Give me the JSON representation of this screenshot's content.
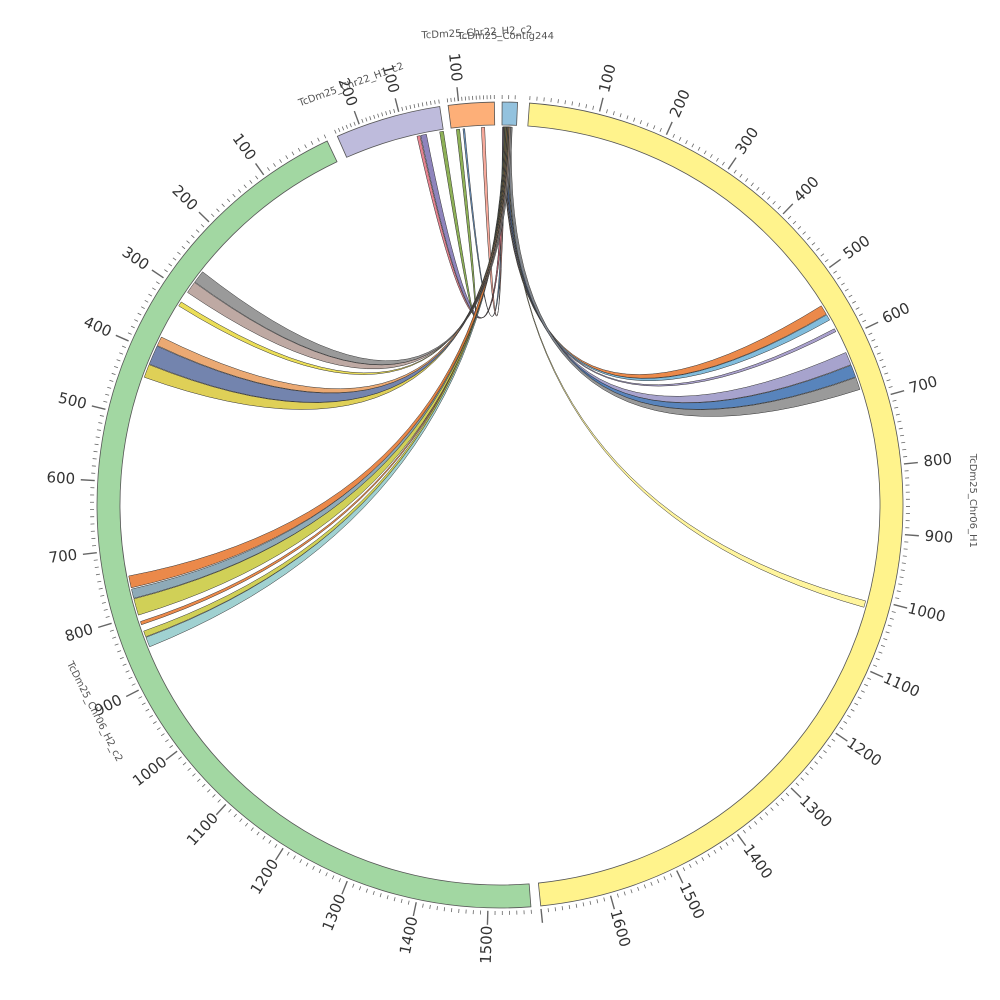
{
  "chart_data": {
    "type": "chord",
    "segments": [
      {
        "id": "chr06_h1",
        "name": "TcDm25_Chr06_H1",
        "color": "#fff38c",
        "length": 1700,
        "ticks": [
          "100",
          "200",
          "300",
          "400",
          "500",
          "600",
          "700",
          "800",
          "900",
          "1000",
          "1100",
          "1200",
          "1300",
          "1400",
          "1500",
          "1600"
        ]
      },
      {
        "id": "chr06_h2",
        "name": "TcDm25_Chr06_H2_c2",
        "color": "#a2d7a2",
        "length": 1560,
        "ticks": [
          "100",
          "200",
          "300",
          "400",
          "500",
          "600",
          "700",
          "800",
          "900",
          "1000",
          "1100",
          "1200",
          "1300",
          "1400",
          "1500"
        ]
      },
      {
        "id": "chr22_h1",
        "name": "TcDm25_Chr22_H1_c2",
        "color": "#bebbdc",
        "length": 260,
        "ticks": [
          "100",
          "200"
        ]
      },
      {
        "id": "chr22_h2",
        "name": "TcDm25_Chr22_H2_c2",
        "color": "#fdaf78",
        "length": 130,
        "ticks": [
          "100"
        ]
      },
      {
        "id": "contig244",
        "name": "TcDm25_Contig244",
        "color": "#93c2de",
        "length": 24,
        "ticks": []
      }
    ],
    "links": [
      {
        "from": "contig244",
        "from_range": [
          2,
          10
        ],
        "to": "chr06_h1",
        "to_range": [
          540,
          555
        ],
        "color": "#e8742a"
      },
      {
        "from": "contig244",
        "from_range": [
          3,
          9
        ],
        "to": "chr06_h1",
        "to_range": [
          556,
          565
        ],
        "color": "#6bb0d6"
      },
      {
        "from": "contig244",
        "from_range": [
          4,
          8
        ],
        "to": "chr06_h1",
        "to_range": [
          580,
          585
        ],
        "color": "#9a8fc4"
      },
      {
        "from": "contig244",
        "from_range": [
          5,
          12
        ],
        "to": "chr06_h1",
        "to_range": [
          620,
          640
        ],
        "color": "#9893c4"
      },
      {
        "from": "contig244",
        "from_range": [
          6,
          14
        ],
        "to": "chr06_h1",
        "to_range": [
          641,
          660
        ],
        "color": "#3b6fb0"
      },
      {
        "from": "contig244",
        "from_range": [
          8,
          16
        ],
        "to": "chr06_h1",
        "to_range": [
          661,
          680
        ],
        "color": "#888888"
      },
      {
        "from": "contig244",
        "from_range": [
          10,
          11
        ],
        "to": "chr06_h1",
        "to_range": [
          1005,
          1015
        ],
        "color": "#fff38c"
      },
      {
        "from": "contig244",
        "from_range": [
          2,
          6
        ],
        "to": "chr22_h2",
        "to_range": [
          90,
          95
        ],
        "color": "#4d7fb5"
      },
      {
        "from": "contig244",
        "from_range": [
          1,
          4
        ],
        "to": "chr22_h2",
        "to_range": [
          30,
          40
        ],
        "color": "#f59a8a"
      },
      {
        "from": "contig244",
        "from_range": [
          1,
          5
        ],
        "to": "chr22_h1",
        "to_range": [
          45,
          60
        ],
        "color": "#7a6fb0"
      },
      {
        "from": "contig244",
        "from_range": [
          2,
          6
        ],
        "to": "chr22_h1",
        "to_range": [
          62,
          70
        ],
        "color": "#e26c7a"
      },
      {
        "from": "chr22_h1",
        "from_range": [
          0,
          10
        ],
        "to": "chr22_h2",
        "to_range": [
          105,
          115
        ],
        "color": "#7aa33a"
      },
      {
        "from": "contig244",
        "from_range": [
          3,
          8
        ],
        "to": "chr06_h2",
        "to_range": [
          835,
          850
        ],
        "color": "#8fc9c9"
      },
      {
        "from": "contig244",
        "from_range": [
          4,
          7
        ],
        "to": "chr06_h2",
        "to_range": [
          825,
          834
        ],
        "color": "#c8c83a"
      },
      {
        "from": "contig244",
        "from_range": [
          5,
          7
        ],
        "to": "chr06_h2",
        "to_range": [
          810,
          815
        ],
        "color": "#e8742a"
      },
      {
        "from": "contig244",
        "from_range": [
          5,
          10
        ],
        "to": "chr06_h2",
        "to_range": [
          775,
          800
        ],
        "color": "#c8c83a"
      },
      {
        "from": "contig244",
        "from_range": [
          6,
          11
        ],
        "to": "chr06_h2",
        "to_range": [
          760,
          774
        ],
        "color": "#7a9bab"
      },
      {
        "from": "contig244",
        "from_range": [
          7,
          12
        ],
        "to": "chr06_h2",
        "to_range": [
          740,
          758
        ],
        "color": "#e8742a"
      },
      {
        "from": "contig244",
        "from_range": [
          8,
          12
        ],
        "to": "chr06_h2",
        "to_range": [
          420,
          440
        ],
        "color": "#d9c83a"
      },
      {
        "from": "contig244",
        "from_range": [
          9,
          14
        ],
        "to": "chr06_h2",
        "to_range": [
          390,
          419
        ],
        "color": "#5a6fa0"
      },
      {
        "from": "contig244",
        "from_range": [
          10,
          14
        ],
        "to": "chr06_h2",
        "to_range": [
          375,
          389
        ],
        "color": "#e89a5a"
      },
      {
        "from": "contig244",
        "from_range": [
          11,
          12
        ],
        "to": "chr06_h2",
        "to_range": [
          315,
          322
        ],
        "color": "#e8d83a"
      },
      {
        "from": "contig244",
        "from_range": [
          12,
          15
        ],
        "to": "chr06_h2",
        "to_range": [
          280,
          298
        ],
        "color": "#b39a93"
      },
      {
        "from": "contig244",
        "from_range": [
          14,
          17
        ],
        "to": "chr06_h2",
        "to_range": [
          260,
          279
        ],
        "color": "#888888"
      }
    ]
  }
}
